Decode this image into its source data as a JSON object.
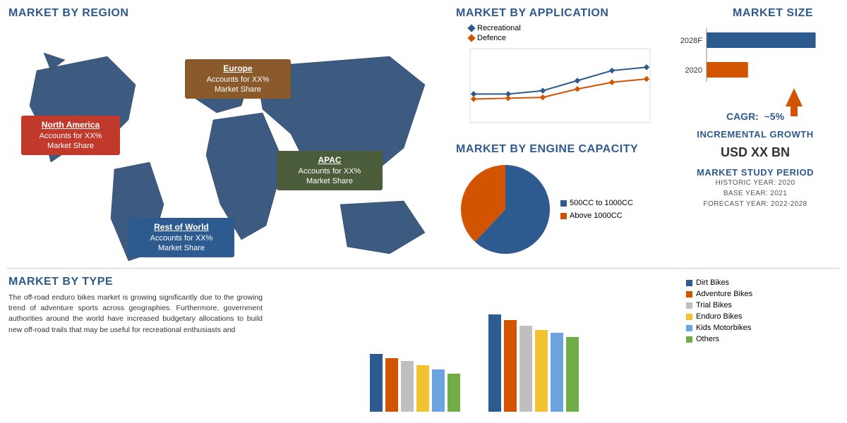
{
  "titles": {
    "region": "MARKET BY REGION",
    "application": "MARKET BY APPLICATION",
    "size": "MARKET SIZE",
    "engine": "MARKET BY ENGINE CAPACITY",
    "incremental": "INCREMENTAL GROWTH",
    "study": "MARKET STUDY PERIOD",
    "type": "MARKET BY TYPE"
  },
  "regions": {
    "na": {
      "name": "North America",
      "line1": "Accounts for XX%",
      "line2": "Market Share",
      "color": "#c0392b"
    },
    "eu": {
      "name": "Europe",
      "line1": "Accounts for XX%",
      "line2": "Market Share",
      "color": "#8b5a2b"
    },
    "apac": {
      "name": "APAC",
      "line1": "Accounts for XX%",
      "line2": "Market Share",
      "color": "#4b5d3a"
    },
    "row": {
      "name": "Rest of World",
      "line1": "Accounts for XX%",
      "line2": "Market Share",
      "color": "#2e5b8f"
    }
  },
  "map": {
    "land_color": "#3d5a80",
    "background": "#ffffff"
  },
  "application_chart": {
    "type": "line",
    "series": [
      {
        "name": "Recreational",
        "color": "#2e5b8f",
        "values": [
          30,
          30,
          34,
          46,
          58,
          62
        ]
      },
      {
        "name": "Defence",
        "color": "#d35400",
        "values": [
          24,
          25,
          26,
          36,
          44,
          48
        ]
      }
    ],
    "xcount": 6,
    "ylim": [
      0,
      80
    ],
    "marker": "diamond",
    "grid_color": "#d9d9d9",
    "background": "#ffffff"
  },
  "engine_chart": {
    "type": "pie",
    "slices": [
      {
        "label": "500CC to 1000CC",
        "value": 62,
        "color": "#2e5b8f"
      },
      {
        "label": "Above 1000CC",
        "value": 38,
        "color": "#d35400"
      }
    ]
  },
  "size_chart": {
    "type": "hbar",
    "bars": [
      {
        "label": "2028F",
        "value": 100,
        "color": "#2e5b8f"
      },
      {
        "label": "2020",
        "value": 38,
        "color": "#d35400"
      }
    ],
    "xmax": 110,
    "cagr_label": "CAGR:",
    "cagr_value": "~5%",
    "arrow_color": "#d35400"
  },
  "incremental": {
    "value": "USD XX BN"
  },
  "study_period": {
    "historic": "HISTORIC YEAR: 2020",
    "base": "BASE YEAR: 2021",
    "forecast": "FORECAST YEAR: 2022-2028"
  },
  "type_section": {
    "paragraph": "The off-road enduro bikes market is growing significantly due to the growing trend of adventure sports across geographies. Furthermore, government authorities around the world have increased budgetary allocations to build new off-road trails that may be useful for recreational enthusiasts and",
    "chart": {
      "type": "grouped-bar",
      "categories": [
        "Dirt Bikes",
        "Adventure Bikes",
        "Trial Bikes",
        "Enduro Bikes",
        "Kids Motorbikes",
        "Others"
      ],
      "colors": [
        "#2e5b8f",
        "#d35400",
        "#bfbfbf",
        "#f1c232",
        "#6aa3e0",
        "#70ad47"
      ],
      "groups": [
        {
          "values": [
            82,
            76,
            72,
            66,
            60,
            54
          ]
        },
        {
          "values": [
            138,
            130,
            122,
            116,
            112,
            106
          ]
        }
      ],
      "ymax": 150
    }
  }
}
